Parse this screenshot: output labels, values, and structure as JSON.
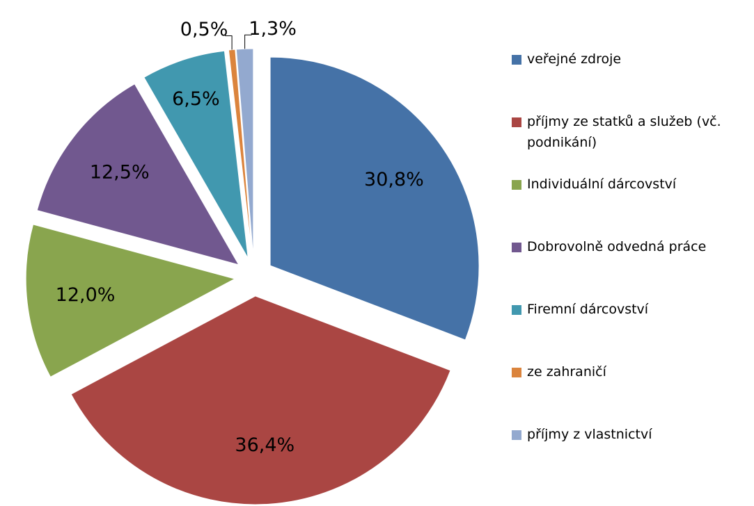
{
  "chart_data": {
    "type": "pie",
    "categories": [
      "veřejné zdroje",
      "příjmy ze statků a služeb (vč. podnikání)",
      "Individuální dárcovství",
      "Dobrovolně odvedná práce",
      "Firemní dárcovství",
      "ze zahraničí",
      "příjmy z vlastnictví"
    ],
    "values": [
      30.8,
      36.4,
      12.0,
      12.5,
      6.5,
      0.5,
      1.3
    ],
    "value_labels": [
      "30,8%",
      "36,4%",
      "12,0%",
      "12,5%",
      "6,5%",
      "0,5%",
      "1,3%"
    ],
    "colors": [
      "#4572a7",
      "#aa4643",
      "#89a54e",
      "#71588f",
      "#4198af",
      "#db843d",
      "#93a9cf"
    ],
    "legend": "right"
  }
}
